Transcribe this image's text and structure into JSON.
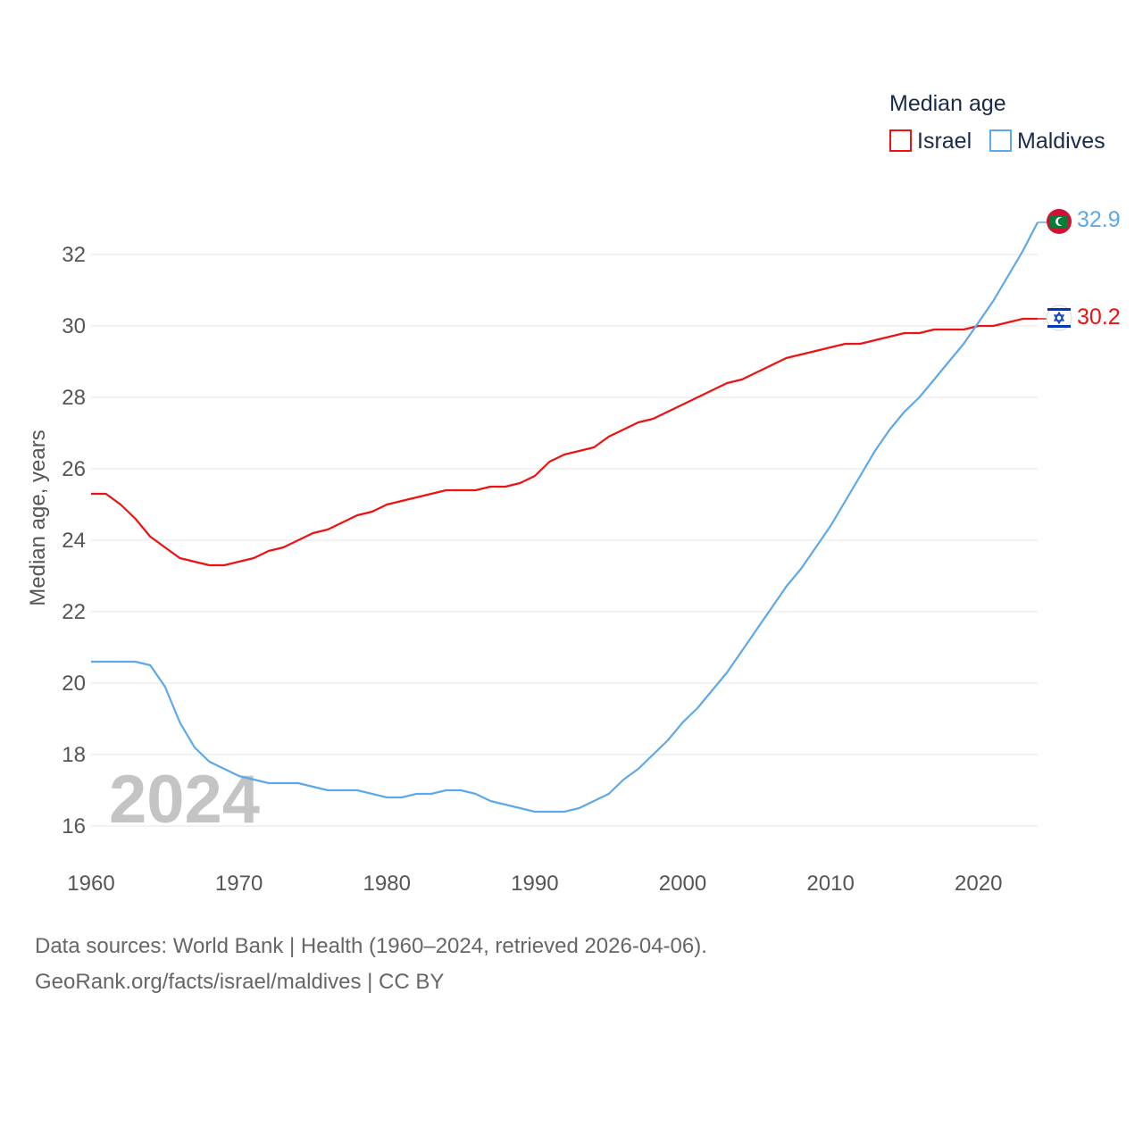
{
  "chart_data": {
    "type": "line",
    "title": "",
    "legend_title": "Median age",
    "xlabel": "",
    "ylabel": "Median age, years",
    "xlim": [
      1960,
      2024
    ],
    "ylim": [
      15.5,
      33.5
    ],
    "xticks": [
      1960,
      1970,
      1980,
      1990,
      2000,
      2010,
      2020
    ],
    "yticks": [
      16,
      18,
      20,
      22,
      24,
      26,
      28,
      30,
      32
    ],
    "current_year": "2024",
    "x": [
      1960,
      1961,
      1962,
      1963,
      1964,
      1965,
      1966,
      1967,
      1968,
      1969,
      1970,
      1971,
      1972,
      1973,
      1974,
      1975,
      1976,
      1977,
      1978,
      1979,
      1980,
      1981,
      1982,
      1983,
      1984,
      1985,
      1986,
      1987,
      1988,
      1989,
      1990,
      1991,
      1992,
      1993,
      1994,
      1995,
      1996,
      1997,
      1998,
      1999,
      2000,
      2001,
      2002,
      2003,
      2004,
      2005,
      2006,
      2007,
      2008,
      2009,
      2010,
      2011,
      2012,
      2013,
      2014,
      2015,
      2016,
      2017,
      2018,
      2019,
      2020,
      2021,
      2022,
      2023,
      2024
    ],
    "series": [
      {
        "name": "Israel",
        "color": "#ee1111",
        "end_label": "30.2",
        "values": [
          25.3,
          25.3,
          25.0,
          24.6,
          24.1,
          23.8,
          23.5,
          23.4,
          23.3,
          23.3,
          23.4,
          23.5,
          23.7,
          23.8,
          24.0,
          24.2,
          24.3,
          24.5,
          24.7,
          24.8,
          25.0,
          25.1,
          25.2,
          25.3,
          25.4,
          25.4,
          25.4,
          25.5,
          25.5,
          25.6,
          25.8,
          26.2,
          26.4,
          26.5,
          26.6,
          26.9,
          27.1,
          27.3,
          27.4,
          27.6,
          27.8,
          28.0,
          28.2,
          28.4,
          28.5,
          28.7,
          28.9,
          29.1,
          29.2,
          29.3,
          29.4,
          29.5,
          29.5,
          29.6,
          29.7,
          29.8,
          29.8,
          29.9,
          29.9,
          29.9,
          30.0,
          30.0,
          30.1,
          30.2,
          30.2
        ]
      },
      {
        "name": "Maldives",
        "color": "#5ea8e8",
        "end_label": "32.9",
        "values": [
          20.6,
          20.6,
          20.6,
          20.6,
          20.5,
          19.9,
          18.9,
          18.2,
          17.8,
          17.6,
          17.4,
          17.3,
          17.2,
          17.2,
          17.2,
          17.1,
          17.0,
          17.0,
          17.0,
          16.9,
          16.8,
          16.8,
          16.9,
          16.9,
          17.0,
          17.0,
          16.9,
          16.7,
          16.6,
          16.5,
          16.4,
          16.4,
          16.4,
          16.5,
          16.7,
          16.9,
          17.3,
          17.6,
          18.0,
          18.4,
          18.9,
          19.3,
          19.8,
          20.3,
          20.9,
          21.5,
          22.1,
          22.7,
          23.2,
          23.8,
          24.4,
          25.1,
          25.8,
          26.5,
          27.1,
          27.6,
          28.0,
          28.5,
          29.0,
          29.5,
          30.1,
          30.7,
          31.4,
          32.1,
          32.9
        ]
      }
    ]
  },
  "source": {
    "line1": "Data sources: World Bank | Health (1960–2024, retrieved 2026-04-06).",
    "line2": "GeoRank.org/facts/israel/maldives | CC BY"
  }
}
